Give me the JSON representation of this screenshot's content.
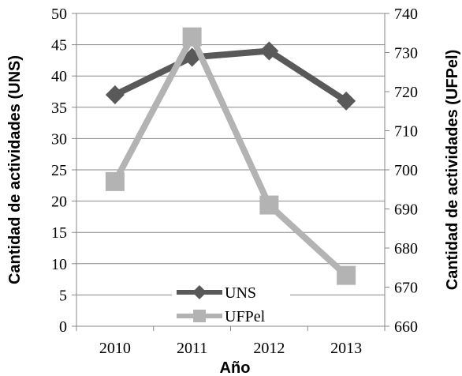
{
  "chart_data": {
    "type": "line",
    "categories": [
      "2010",
      "2011",
      "2012",
      "2013"
    ],
    "xlabel": "Año",
    "ylabel_left": "Cantidad de actividades (UNS)",
    "ylabel_right": "Cantidad de actividades (UFPel)",
    "ylim_left": [
      0,
      50
    ],
    "yticks_left": [
      0,
      5,
      10,
      15,
      20,
      25,
      30,
      35,
      40,
      45,
      50
    ],
    "ylim_right": [
      660,
      740
    ],
    "yticks_right": [
      660,
      670,
      680,
      690,
      700,
      710,
      720,
      730,
      740
    ],
    "grid": true,
    "legend_position": "bottom-center",
    "series": [
      {
        "name": "UNS",
        "axis": "left",
        "values": [
          37,
          43,
          44,
          36
        ],
        "color": "#595959",
        "marker": "diamond"
      },
      {
        "name": "UFPel",
        "axis": "right",
        "values": [
          697,
          734,
          691,
          673
        ],
        "color": "#b3b3b3",
        "marker": "square"
      }
    ]
  }
}
